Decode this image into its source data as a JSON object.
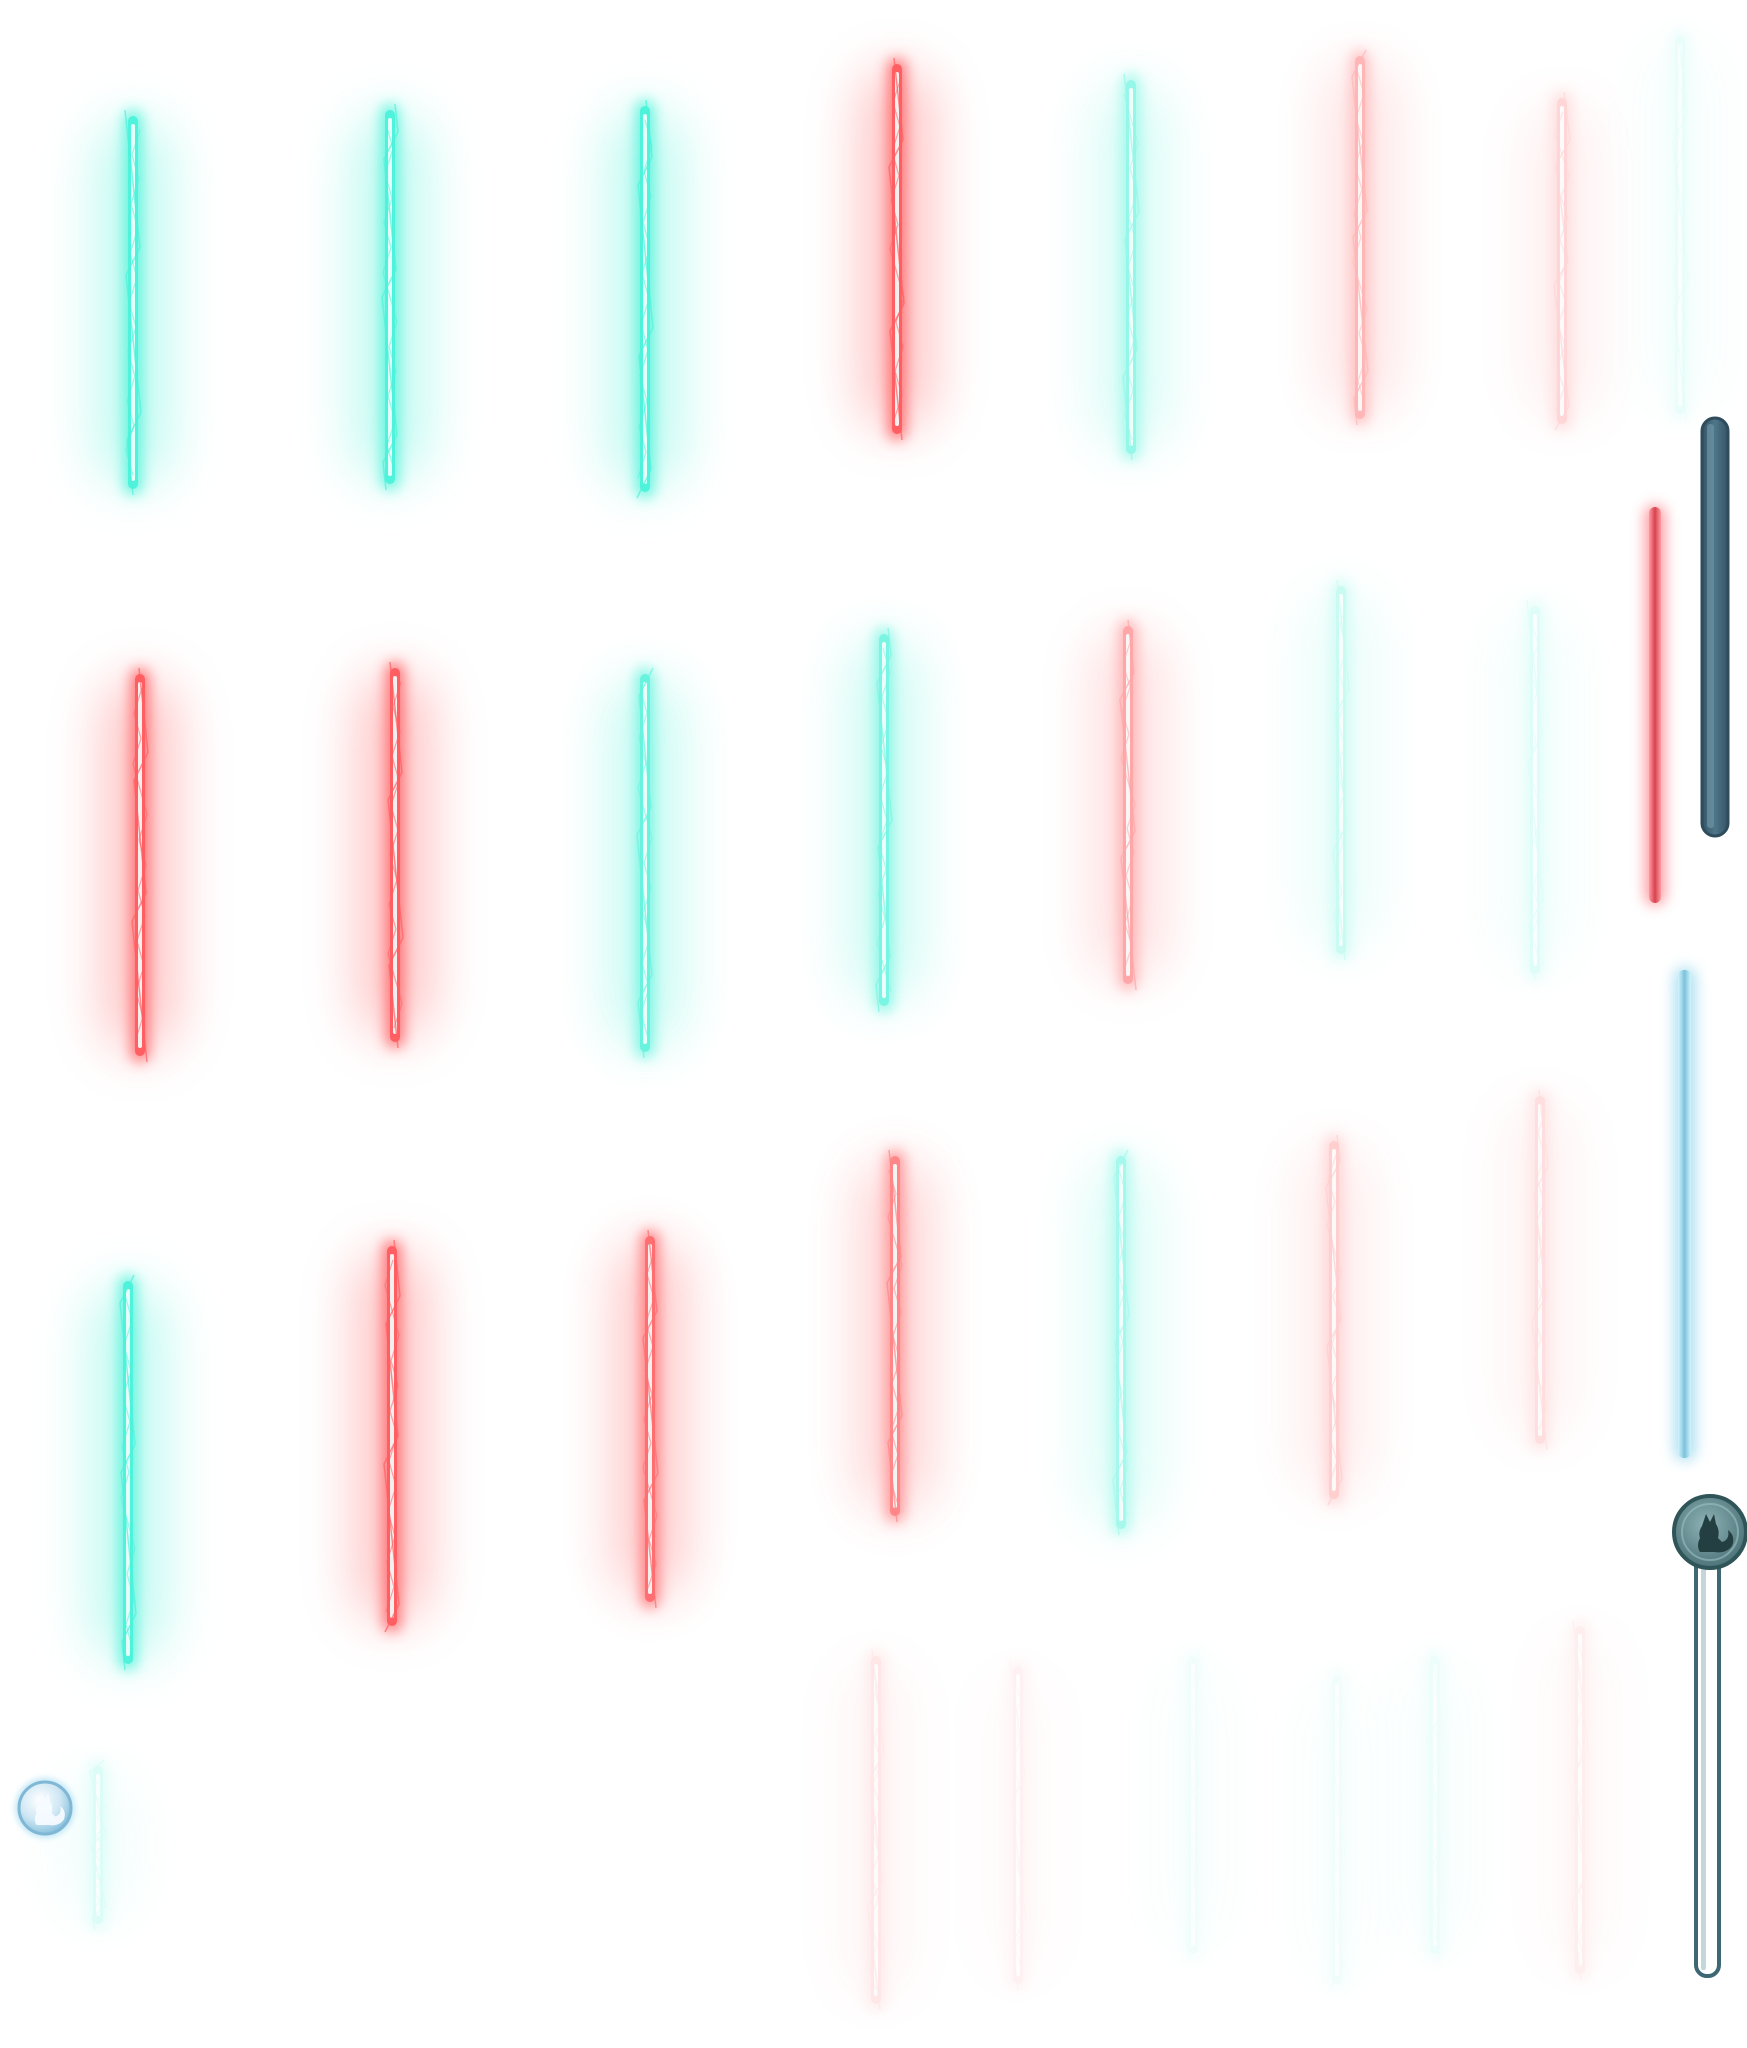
{
  "sheet": {
    "background": "#ffffff",
    "colors": {
      "cyan": "#4ff2da",
      "red": "#ff5f62",
      "core": "#f4fffd",
      "frame_dark": "#466a7f",
      "frame_border": "#2e4c5c",
      "light_blue": "#8fcfe4"
    }
  },
  "sprites": {
    "glow_rows": [
      {
        "colors": [
          "cyan",
          "cyan",
          "cyan",
          "red",
          "cyan",
          "red",
          "red",
          "cyan"
        ],
        "opacity": [
          1,
          1,
          1,
          1,
          0.6,
          0.45,
          0.25,
          0.12
        ]
      },
      {
        "colors": [
          "red",
          "red",
          "cyan",
          "cyan",
          "red",
          "cyan",
          "cyan"
        ],
        "opacity": [
          1,
          1,
          0.85,
          0.75,
          0.55,
          0.3,
          0.18
        ]
      },
      {
        "colors": [
          "cyan",
          "red",
          "red",
          "red",
          "cyan",
          "red",
          "red"
        ],
        "opacity": [
          1,
          1,
          0.9,
          0.75,
          0.5,
          0.3,
          0.2
        ]
      },
      {
        "colors": [
          "red",
          "red",
          "cyan",
          "cyan",
          "cyan",
          "red",
          "cyan"
        ],
        "opacity": [
          0.15,
          0.08,
          0.08,
          0.08,
          0.1,
          0.1,
          0.2
        ]
      }
    ],
    "ui_elements": [
      {
        "name": "dark-bar-frame",
        "icon": "bar-frame-dark"
      },
      {
        "name": "red-glow-bar",
        "icon": "bar-red-glow"
      },
      {
        "name": "blue-glow-bar",
        "icon": "bar-blue-glow"
      },
      {
        "name": "slider-track-with-knob",
        "icon": "squirrel-icon"
      },
      {
        "name": "round-bubble-icon",
        "icon": "squirrel-icon"
      }
    ]
  }
}
